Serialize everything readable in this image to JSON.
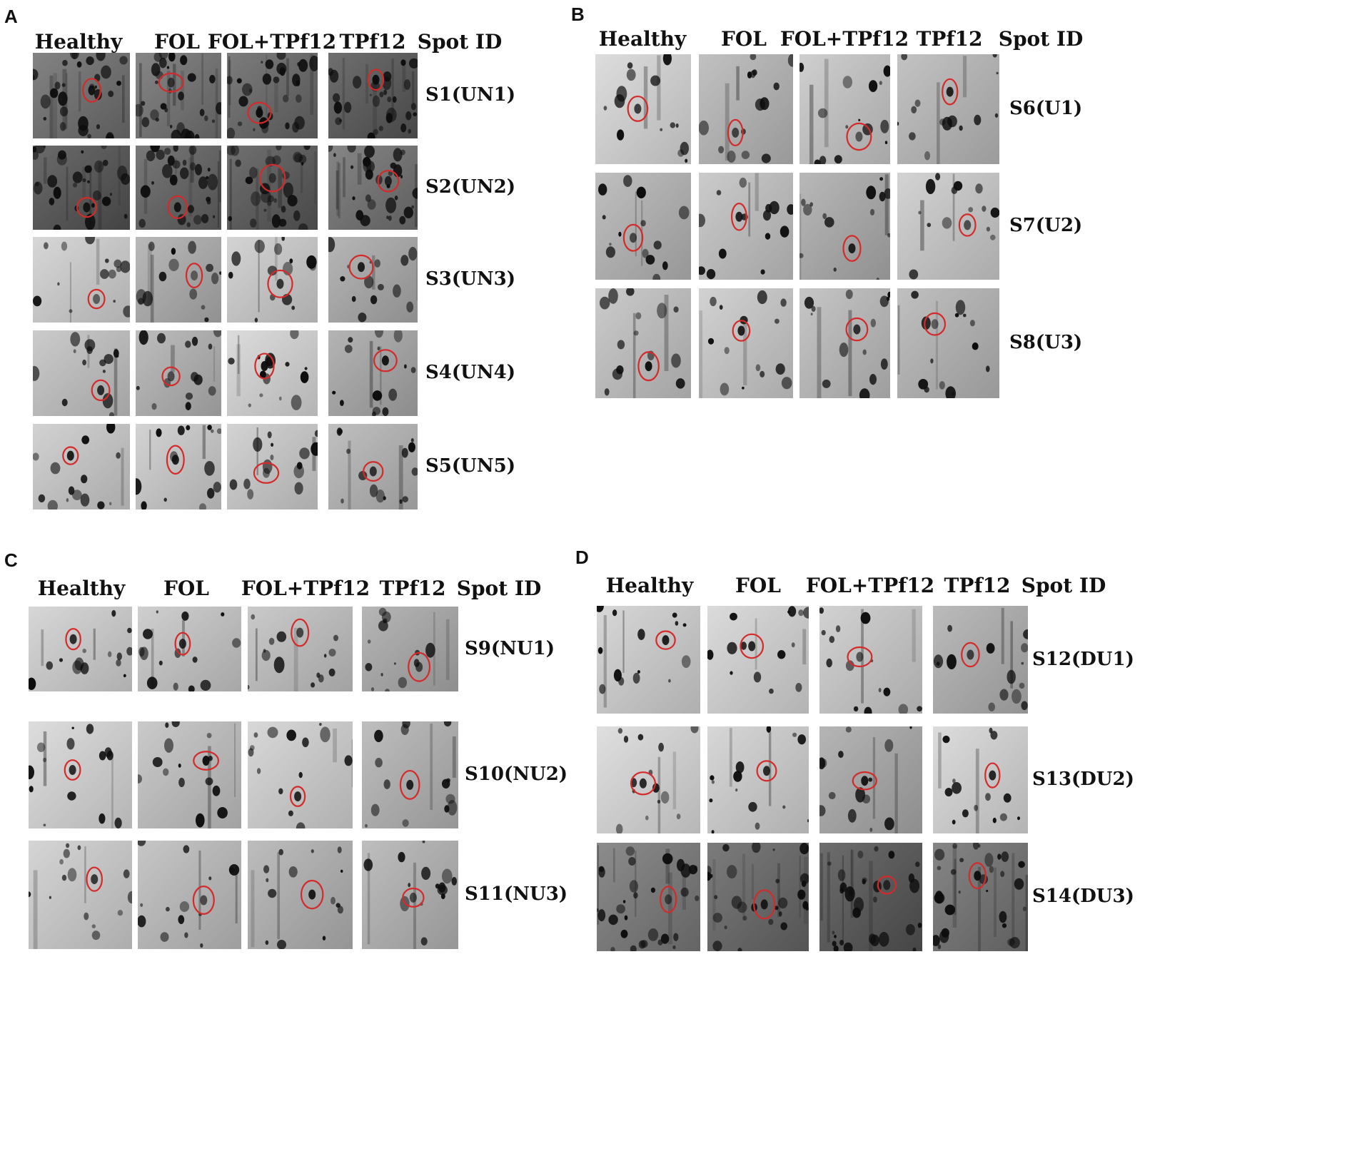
{
  "panels": [
    {
      "label": "A",
      "columns": [
        "Healthy",
        "FOL",
        "FOL+TPf12",
        "TPf12",
        "Spot ID"
      ],
      "rows": [
        "S1(UN1)",
        "S2(UN2)",
        "S3(UN3)",
        "S4(UN4)",
        "S5(UN5)"
      ]
    },
    {
      "label": "B",
      "columns": [
        "Healthy",
        "FOL",
        "FOL+TPf12",
        "TPf12",
        "Spot ID"
      ],
      "rows": [
        "S6(U1)",
        "S7(U2)",
        "S8(U3)"
      ]
    },
    {
      "label": "C",
      "columns": [
        "Healthy",
        "FOL",
        "FOL+TPf12",
        "TPf12",
        "Spot ID"
      ],
      "rows": [
        "S9(NU1)",
        "S10(NU2)",
        "S11(NU3)"
      ]
    },
    {
      "label": "D",
      "columns": [
        "Healthy",
        "FOL",
        "FOL+TPf12",
        "TPf12",
        "Spot ID"
      ],
      "rows": [
        "S12(DU1)",
        "S13(DU2)",
        "S14(DU3)"
      ]
    }
  ],
  "colors": {
    "highlight_circle": "#d42a2a",
    "gel_light": "#c9c9c9",
    "gel_dark": "#5a5a5a",
    "spot": "#0d0d0d"
  }
}
